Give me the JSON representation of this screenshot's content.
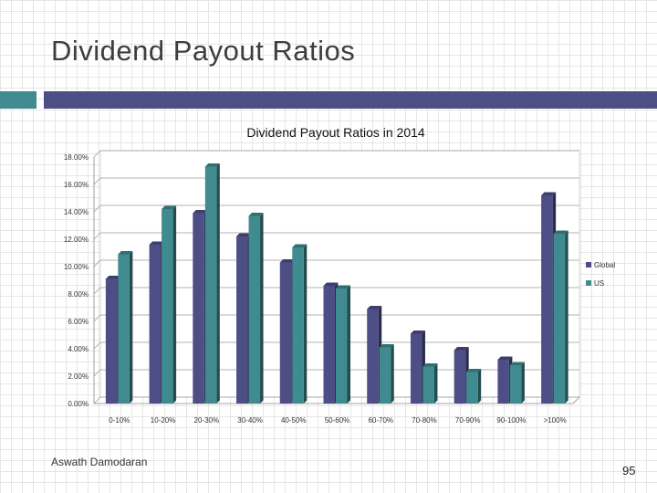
{
  "slide": {
    "title": "Dividend Payout Ratios",
    "author": "Aswath Damodaran",
    "page_number": "95"
  },
  "colors": {
    "accent_teal": "#3f8b8f",
    "accent_navy": "#4e4e86",
    "global": "#4e4e86",
    "us": "#3f8b8f"
  },
  "chart_data": {
    "type": "bar",
    "title": "Dividend Payout Ratios in 2014",
    "xlabel": "",
    "ylabel": "",
    "categories": [
      "0-10%",
      "10-20%",
      "20-30%",
      "30-40%",
      "40-50%",
      "50-60%",
      "60-70%",
      "70-80%",
      "70-90%",
      "90-100%",
      ">100%"
    ],
    "series": [
      {
        "name": "Global",
        "color": "#4e4e86",
        "values": [
          9.1,
          11.6,
          13.9,
          12.2,
          10.3,
          8.6,
          6.9,
          5.1,
          3.9,
          3.2,
          15.2
        ]
      },
      {
        "name": "US",
        "color": "#3f8b8f",
        "values": [
          10.9,
          14.2,
          17.3,
          13.7,
          11.4,
          8.4,
          4.1,
          2.7,
          2.3,
          2.8,
          12.4
        ]
      }
    ],
    "ylim": [
      0,
      18
    ],
    "yticks": [
      "0.00%",
      "2.00%",
      "4.00%",
      "6.00%",
      "8.00%",
      "10.00%",
      "12.00%",
      "14.00%",
      "16.00%",
      "18.00%"
    ],
    "grid": true,
    "legend_position": "right",
    "style": "3d"
  }
}
